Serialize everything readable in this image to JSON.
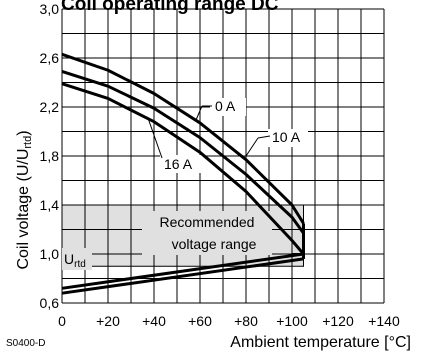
{
  "chart_data": {
    "type": "line",
    "title": "Coil operating range DC",
    "xlabel": "Ambient temperature [°C]",
    "ylabel_main": "Coil voltage (U/U",
    "ylabel_sub": "rtd",
    "ylabel_tail": ")",
    "xlim": [
      0,
      140
    ],
    "ylim": [
      0.6,
      3.0
    ],
    "x_ticks": [
      0,
      20,
      40,
      60,
      80,
      100,
      120,
      140
    ],
    "x_tick_labels": [
      "0",
      "+20",
      "+40",
      "+60",
      "+80",
      "+100",
      "+120",
      "+140"
    ],
    "y_ticks": [
      0.6,
      1.0,
      1.4,
      1.8,
      2.2,
      2.6,
      3.0
    ],
    "y_tick_labels": [
      "0,6",
      "1,0",
      "1,4",
      "1,8",
      "2,2",
      "2,6",
      "3,0"
    ],
    "grid": true,
    "series": [
      {
        "name": "0 A",
        "x": [
          0,
          20,
          40,
          60,
          80,
          100,
          105
        ],
        "y": [
          2.63,
          2.5,
          2.31,
          2.07,
          1.77,
          1.4,
          1.25
        ]
      },
      {
        "name": "10 A",
        "x": [
          0,
          20,
          40,
          60,
          80,
          100,
          105
        ],
        "y": [
          2.49,
          2.37,
          2.19,
          1.95,
          1.65,
          1.3,
          1.17
        ]
      },
      {
        "name": "16 A",
        "x": [
          0,
          20,
          40,
          60,
          80,
          100,
          105
        ],
        "y": [
          2.39,
          2.27,
          2.08,
          1.83,
          1.51,
          1.11,
          1.0
        ]
      },
      {
        "name": "",
        "x": [
          0,
          105
        ],
        "y": [
          0.72,
          1.0
        ]
      },
      {
        "name": "",
        "x": [
          0,
          105
        ],
        "y": [
          0.68,
          0.96
        ]
      }
    ],
    "curve_labels": [
      "0 A",
      "10 A",
      "16 A"
    ],
    "band": {
      "label_line1": "Recommended",
      "label_line2": "voltage range",
      "x": [
        0,
        105
      ],
      "y": [
        0.9,
        1.4
      ]
    },
    "urtd_label_main": "U",
    "urtd_label_sub": "rtd"
  },
  "figure_code": "S0400-D"
}
